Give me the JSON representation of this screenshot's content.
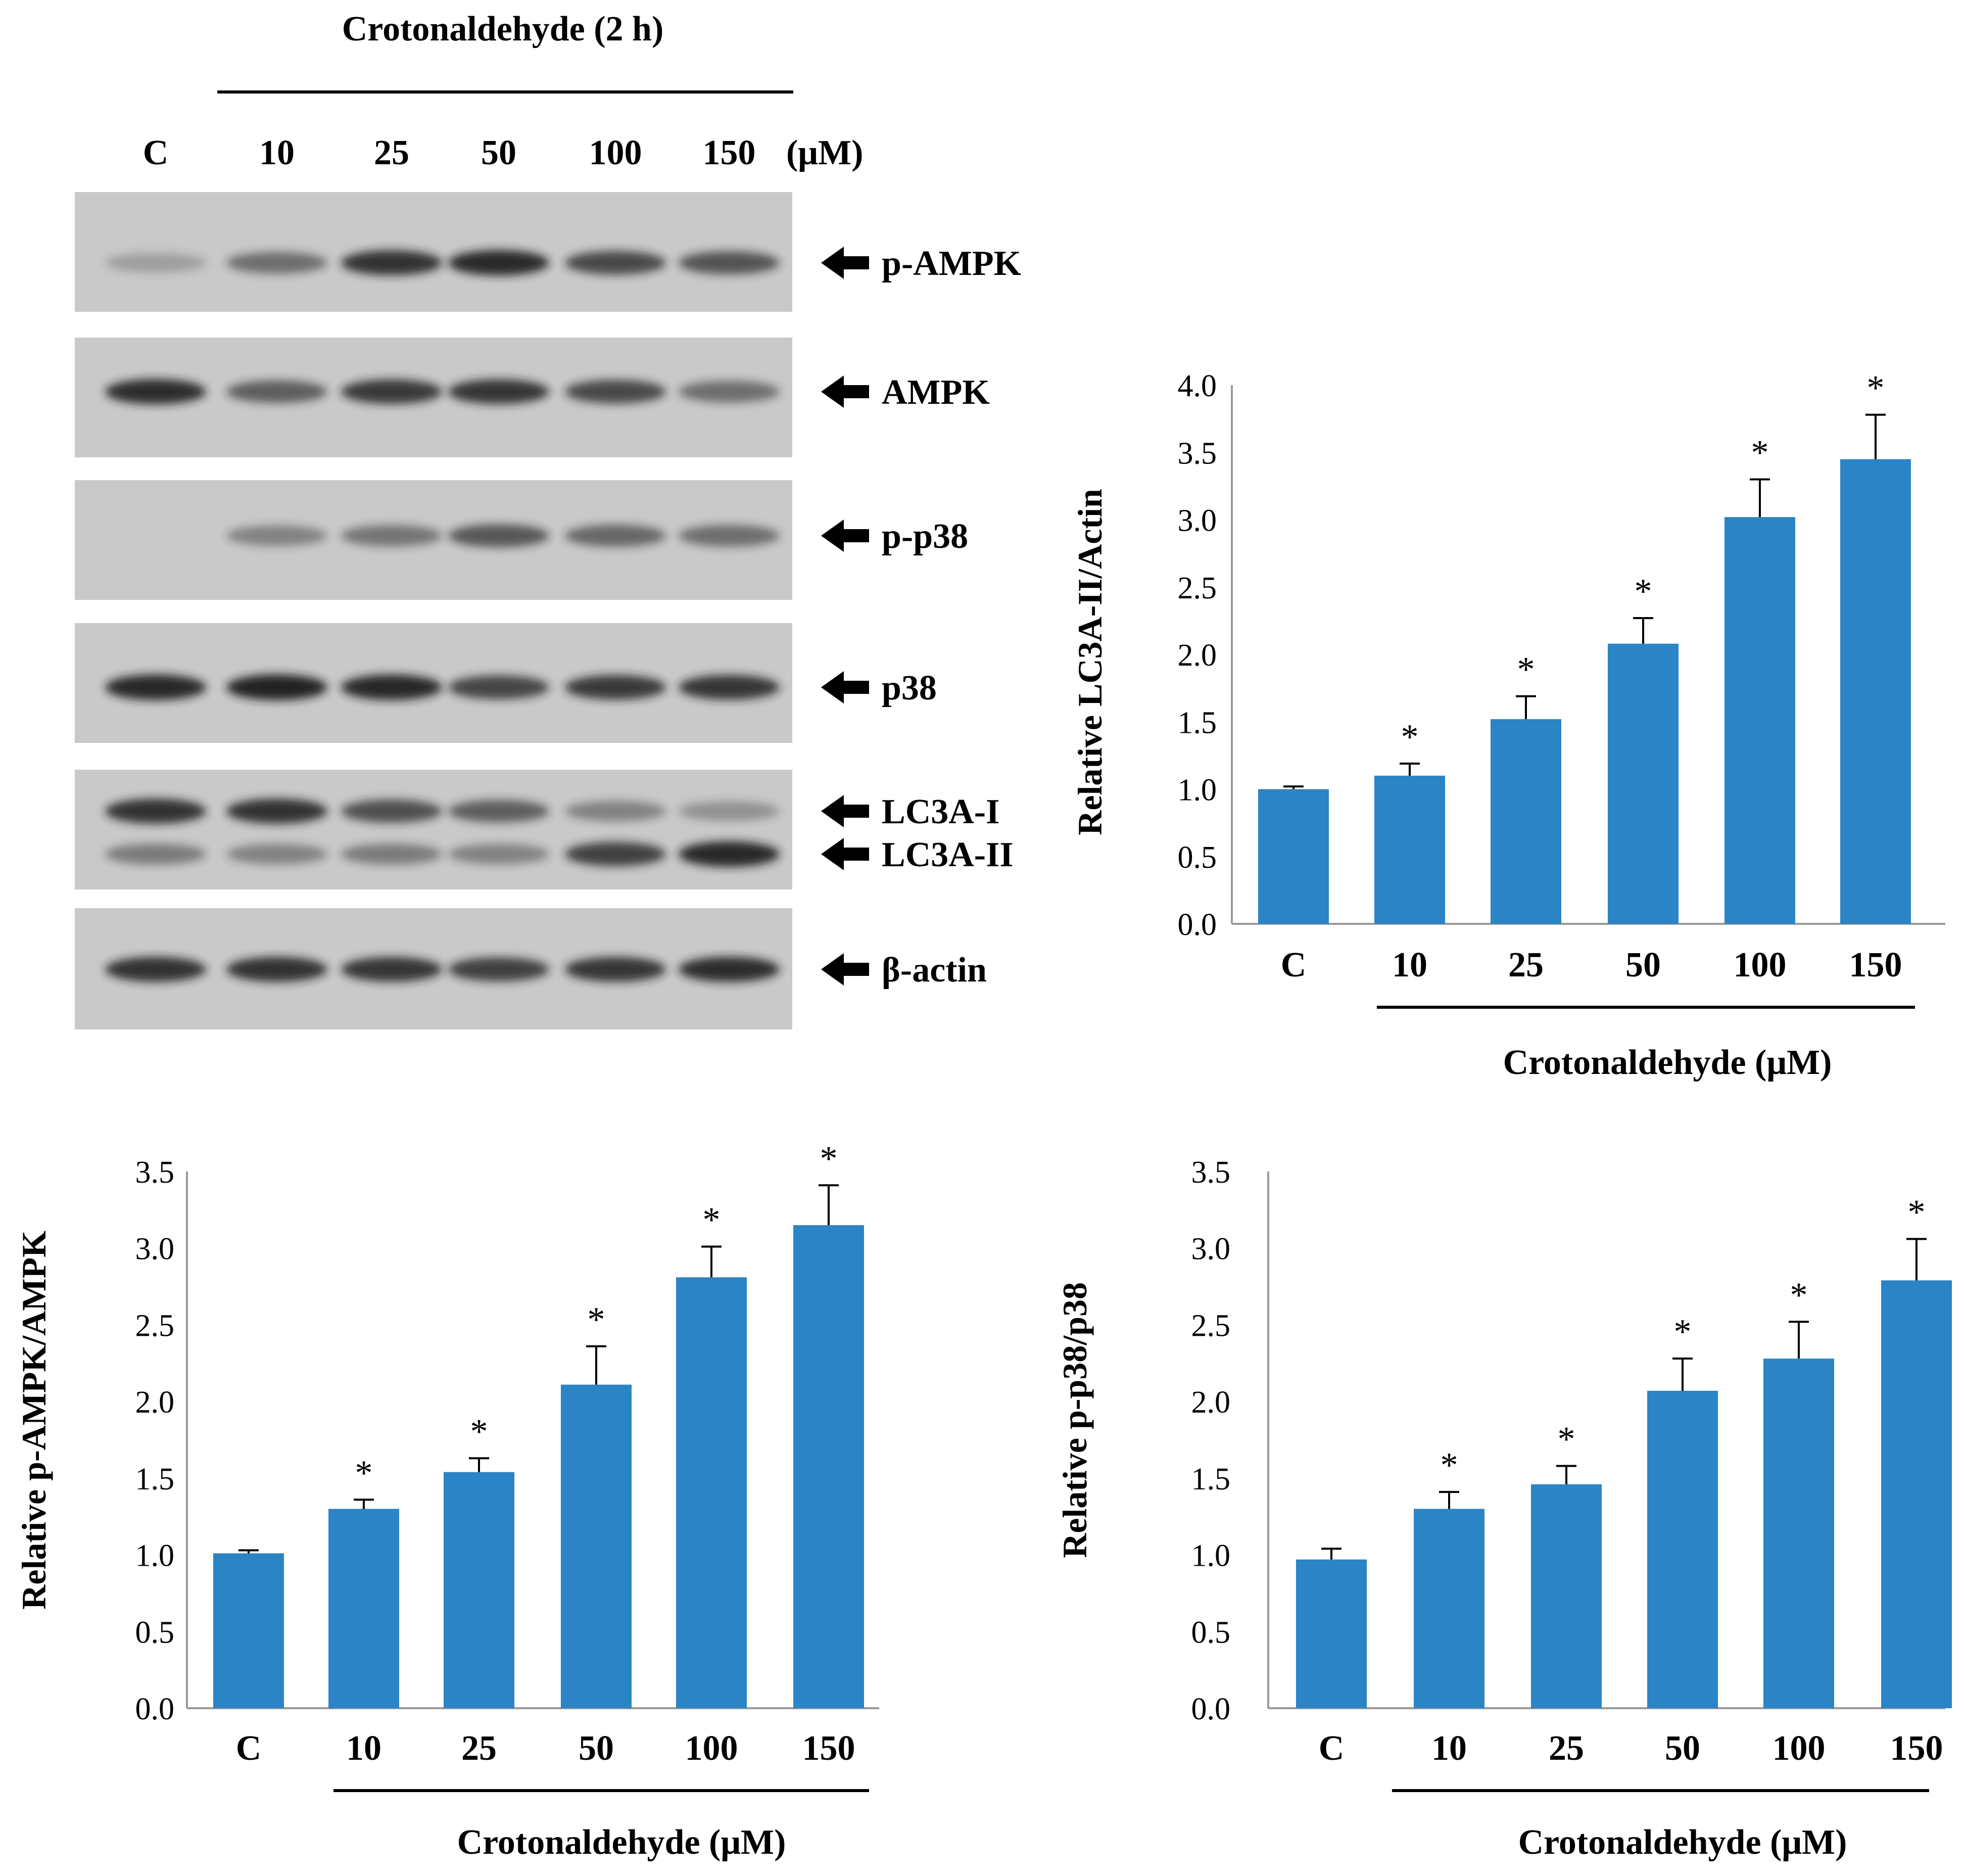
{
  "figure": {
    "blot": {
      "treatment_title": "Crotonaldehyde (2 h)",
      "lanes": [
        "C",
        "10",
        "25",
        "50",
        "100",
        "150"
      ],
      "unit": "(μM)",
      "panels": [
        {
          "label": "p-AMPK",
          "bands": [
            {
              "intensity": [
                0.12,
                0.45,
                0.85,
                0.9,
                0.7,
                0.62
              ],
              "arrow": true
            }
          ]
        },
        {
          "label": "AMPK",
          "bands": [
            {
              "intensity": [
                0.88,
                0.55,
                0.8,
                0.82,
                0.7,
                0.45
              ],
              "arrow": true
            }
          ]
        },
        {
          "label": "p-p38",
          "bands": [
            {
              "intensity": [
                0.0,
                0.3,
                0.4,
                0.6,
                0.5,
                0.45
              ],
              "arrow": true
            }
          ]
        },
        {
          "label": "p38",
          "bands": [
            {
              "intensity": [
                0.92,
                0.95,
                0.92,
                0.72,
                0.8,
                0.82
              ],
              "arrow": true
            }
          ]
        },
        {
          "labels": [
            "LC3A-I",
            "LC3A-II"
          ],
          "bands": [
            {
              "intensity": [
                0.85,
                0.85,
                0.65,
                0.55,
                0.3,
                0.2
              ],
              "arrow": true
            },
            {
              "intensity": [
                0.35,
                0.3,
                0.35,
                0.3,
                0.75,
                0.92
              ],
              "arrow": true
            }
          ]
        },
        {
          "label": "β-actin",
          "bands": [
            {
              "intensity": [
                0.85,
                0.85,
                0.82,
                0.75,
                0.82,
                0.88
              ],
              "arrow": true
            }
          ]
        }
      ]
    },
    "colors": {
      "bar": "#2a84c5",
      "membrane": "#c9c9c9",
      "band": "#1a1a1a",
      "arrow": "#000000"
    }
  },
  "chart_data": [
    {
      "type": "bar",
      "title": "",
      "ylabel": "Relative LC3A-II/Actin",
      "xlabel": "Crotonaldehyde (μM)",
      "categories": [
        "C",
        "10",
        "25",
        "50",
        "100",
        "150"
      ],
      "values": [
        1.0,
        1.1,
        1.52,
        2.08,
        3.02,
        3.45
      ],
      "errors": [
        0.02,
        0.09,
        0.17,
        0.19,
        0.28,
        0.33
      ],
      "significance": [
        "",
        "*",
        "*",
        "*",
        "*",
        "*"
      ],
      "ylim": [
        0,
        4.0
      ],
      "yticks": [
        "0.0",
        "0.5",
        "1.0",
        "1.5",
        "2.0",
        "2.5",
        "3.0",
        "3.5",
        "4.0"
      ]
    },
    {
      "type": "bar",
      "title": "",
      "ylabel": "Relative p-AMPK/AMPK",
      "xlabel": "Crotonaldehyde (μM)",
      "categories": [
        "C",
        "10",
        "25",
        "50",
        "100",
        "150"
      ],
      "values": [
        1.01,
        1.3,
        1.54,
        2.11,
        2.81,
        3.15
      ],
      "errors": [
        0.02,
        0.06,
        0.09,
        0.25,
        0.2,
        0.26
      ],
      "significance": [
        "",
        "*",
        "*",
        "*",
        "*",
        "*"
      ],
      "ylim": [
        0,
        3.5
      ],
      "yticks": [
        "0.0",
        "0.5",
        "1.0",
        "1.5",
        "2.0",
        "2.5",
        "3.0",
        "3.5"
      ]
    },
    {
      "type": "bar",
      "title": "",
      "ylabel": "Relative p-p38/p38",
      "xlabel": "Crotonaldehyde (μM)",
      "categories": [
        "C",
        "10",
        "25",
        "50",
        "100",
        "150"
      ],
      "values": [
        0.97,
        1.3,
        1.46,
        2.07,
        2.28,
        2.79
      ],
      "errors": [
        0.07,
        0.11,
        0.12,
        0.21,
        0.24,
        0.27
      ],
      "significance": [
        "",
        "*",
        "*",
        "*",
        "*",
        "*"
      ],
      "ylim": [
        0,
        3.5
      ],
      "yticks": [
        "0.0",
        "0.5",
        "1.0",
        "1.5",
        "2.0",
        "2.5",
        "3.0",
        "3.5"
      ]
    }
  ]
}
